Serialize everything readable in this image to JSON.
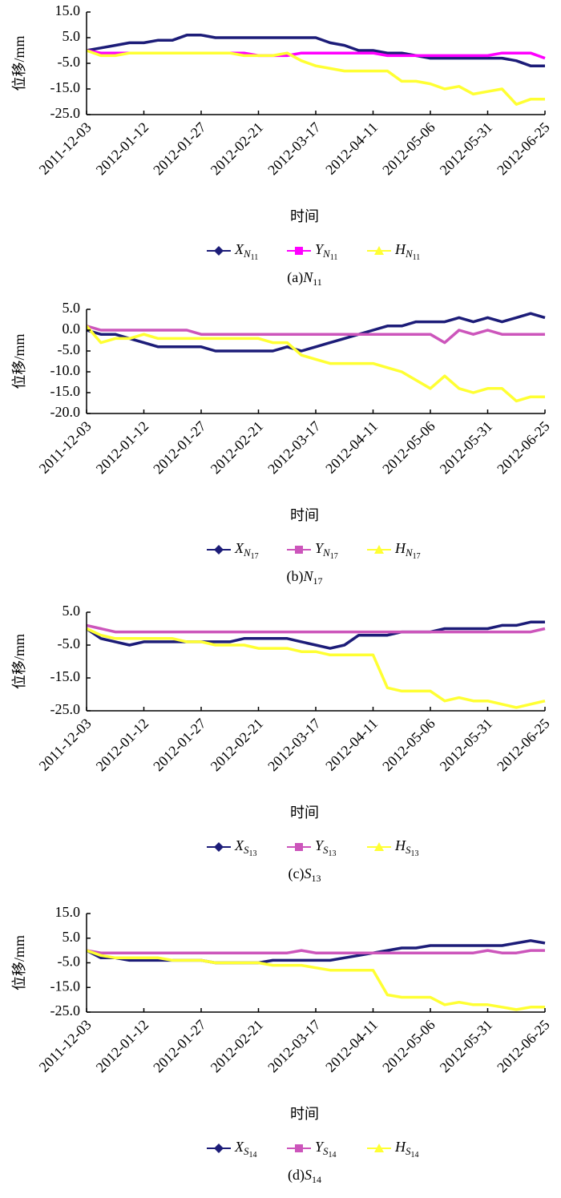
{
  "chart_data": [
    {
      "type": "line",
      "ylabel": "位移/mm",
      "xlabel": "时间",
      "caption": "(a)",
      "caption_var": "N",
      "caption_sub": "11",
      "categories": [
        "2011-12-03",
        null,
        null,
        null,
        "2012-01-12",
        null,
        null,
        null,
        "2012-01-27",
        null,
        null,
        null,
        "2012-02-21",
        null,
        null,
        null,
        "2012-03-17",
        null,
        null,
        null,
        "2012-04-11",
        null,
        null,
        null,
        "2012-05-06",
        null,
        null,
        null,
        "2012-05-31",
        null,
        null,
        null,
        "2012-06-25"
      ],
      "ylim": [
        -25,
        15
      ],
      "yticks": [
        {
          "value": -25,
          "label": "-25.0"
        },
        {
          "value": -15,
          "label": "-15.0"
        },
        {
          "value": -5,
          "label": "-5.0"
        },
        {
          "value": 5,
          "label": "5.0"
        },
        {
          "value": 15,
          "label": "15.0"
        }
      ],
      "series": [
        {
          "name": "X",
          "name_sub": "N",
          "name_subsub": "11",
          "color": "#1c1c78",
          "marker": "diamond",
          "values": [
            0,
            1,
            2,
            3,
            3,
            4,
            4,
            6,
            6,
            5,
            5,
            5,
            5,
            5,
            5,
            5,
            5,
            3,
            2,
            0,
            0,
            -1,
            -1,
            -2,
            -3,
            -3,
            -3,
            -3,
            -3,
            -3,
            -4,
            -6,
            -6
          ]
        },
        {
          "name": "Y",
          "name_sub": "N",
          "name_subsub": "11",
          "color": "#ff00ff",
          "marker": "square",
          "values": [
            0,
            -1,
            -1,
            -1,
            -1,
            -1,
            -1,
            -1,
            -1,
            -1,
            -1,
            -1,
            -2,
            -2,
            -2,
            -1,
            -1,
            -1,
            -1,
            -1,
            -1,
            -2,
            -2,
            -2,
            -2,
            -2,
            -2,
            -2,
            -2,
            -1,
            -1,
            -1,
            -3
          ]
        },
        {
          "name": "H",
          "name_sub": "N",
          "name_subsub": "11",
          "color": "#ffff33",
          "marker": "triangle",
          "values": [
            0,
            -2,
            -2,
            -1,
            -1,
            -1,
            -1,
            -1,
            -1,
            -1,
            -1,
            -2,
            -2,
            -2,
            -1,
            -4,
            -6,
            -7,
            -8,
            -8,
            -8,
            -8,
            -12,
            -12,
            -13,
            -15,
            -14,
            -17,
            -16,
            -15,
            -21,
            -19,
            -19
          ]
        }
      ]
    },
    {
      "type": "line",
      "ylabel": "位移/mm",
      "xlabel": "时间",
      "caption": "(b)",
      "caption_var": "N",
      "caption_sub": "17",
      "categories": [
        "2011-12-03",
        null,
        null,
        null,
        "2012-01-12",
        null,
        null,
        null,
        "2012-01-27",
        null,
        null,
        null,
        "2012-02-21",
        null,
        null,
        null,
        "2012-03-17",
        null,
        null,
        null,
        "2012-04-11",
        null,
        null,
        null,
        "2012-05-06",
        null,
        null,
        null,
        "2012-05-31",
        null,
        null,
        null,
        "2012-06-25"
      ],
      "ylim": [
        -20,
        5
      ],
      "yticks": [
        {
          "value": -20,
          "label": "-20.0"
        },
        {
          "value": -15,
          "label": "-15.0"
        },
        {
          "value": -10,
          "label": "-10.0"
        },
        {
          "value": -5,
          "label": "-5.0"
        },
        {
          "value": 0,
          "label": "0.0"
        },
        {
          "value": 5,
          "label": "5.0"
        }
      ],
      "series": [
        {
          "name": "X",
          "name_sub": "N",
          "name_subsub": "17",
          "color": "#1c1c78",
          "marker": "diamond",
          "values": [
            0,
            -1,
            -1,
            -2,
            -3,
            -4,
            -4,
            -4,
            -4,
            -5,
            -5,
            -5,
            -5,
            -5,
            -4,
            -5,
            -4,
            -3,
            -2,
            -1,
            0,
            1,
            1,
            2,
            2,
            2,
            3,
            2,
            3,
            2,
            3,
            4,
            3
          ]
        },
        {
          "name": "Y",
          "name_sub": "N",
          "name_subsub": "17",
          "color": "#cc55bb",
          "marker": "square",
          "values": [
            1,
            0,
            0,
            0,
            0,
            0,
            0,
            0,
            -1,
            -1,
            -1,
            -1,
            -1,
            -1,
            -1,
            -1,
            -1,
            -1,
            -1,
            -1,
            -1,
            -1,
            -1,
            -1,
            -1,
            -3,
            0,
            -1,
            0,
            -1,
            -1,
            -1,
            -1
          ]
        },
        {
          "name": "H",
          "name_sub": "N",
          "name_subsub": "17",
          "color": "#ffff33",
          "marker": "triangle",
          "values": [
            1,
            -3,
            -2,
            -2,
            -1,
            -2,
            -2,
            -2,
            -2,
            -2,
            -2,
            -2,
            -2,
            -3,
            -3,
            -6,
            -7,
            -8,
            -8,
            -8,
            -8,
            -9,
            -10,
            -12,
            -14,
            -11,
            -14,
            -15,
            -14,
            -14,
            -17,
            -16,
            -16
          ]
        }
      ]
    },
    {
      "type": "line",
      "ylabel": "位移/mm",
      "xlabel": "时间",
      "caption": "(c)",
      "caption_var": "S",
      "caption_sub": "13",
      "categories": [
        "2011-12-03",
        null,
        null,
        null,
        "2012-01-12",
        null,
        null,
        null,
        "2012-01-27",
        null,
        null,
        null,
        "2012-02-21",
        null,
        null,
        null,
        "2012-03-17",
        null,
        null,
        null,
        "2012-04-11",
        null,
        null,
        null,
        "2012-05-06",
        null,
        null,
        null,
        "2012-05-31",
        null,
        null,
        null,
        "2012-06-25"
      ],
      "ylim": [
        -25,
        5
      ],
      "yticks": [
        {
          "value": -25,
          "label": "-25.0"
        },
        {
          "value": -15,
          "label": "-15.0"
        },
        {
          "value": -5,
          "label": "-5.0"
        },
        {
          "value": 5,
          "label": "5.0"
        }
      ],
      "series": [
        {
          "name": "X",
          "name_sub": "S",
          "name_subsub": "13",
          "color": "#1c1c78",
          "marker": "diamond",
          "values": [
            0,
            -3,
            -4,
            -5,
            -4,
            -4,
            -4,
            -4,
            -4,
            -4,
            -4,
            -3,
            -3,
            -3,
            -3,
            -4,
            -5,
            -6,
            -5,
            -2,
            -2,
            -2,
            -1,
            -1,
            -1,
            0,
            0,
            0,
            0,
            1,
            1,
            2,
            2
          ]
        },
        {
          "name": "Y",
          "name_sub": "S",
          "name_subsub": "13",
          "color": "#cc55bb",
          "marker": "square",
          "values": [
            1,
            0,
            -1,
            -1,
            -1,
            -1,
            -1,
            -1,
            -1,
            -1,
            -1,
            -1,
            -1,
            -1,
            -1,
            -1,
            -1,
            -1,
            -1,
            -1,
            -1,
            -1,
            -1,
            -1,
            -1,
            -1,
            -1,
            -1,
            -1,
            -1,
            -1,
            -1,
            0
          ]
        },
        {
          "name": "H",
          "name_sub": "S",
          "name_subsub": "13",
          "color": "#ffff33",
          "marker": "triangle",
          "values": [
            0,
            -2,
            -3,
            -3,
            -3,
            -3,
            -3,
            -4,
            -4,
            -5,
            -5,
            -5,
            -6,
            -6,
            -6,
            -7,
            -7,
            -8,
            -8,
            -8,
            -8,
            -18,
            -19,
            -19,
            -19,
            -22,
            -21,
            -22,
            -22,
            -23,
            -24,
            -23,
            -22
          ]
        }
      ]
    },
    {
      "type": "line",
      "ylabel": "位移/mm",
      "xlabel": "时间",
      "caption": "(d)",
      "caption_var": "S",
      "caption_sub": "14",
      "categories": [
        "2011-12-03",
        null,
        null,
        null,
        "2012-01-12",
        null,
        null,
        null,
        "2012-01-27",
        null,
        null,
        null,
        "2012-02-21",
        null,
        null,
        null,
        "2012-03-17",
        null,
        null,
        null,
        "2012-04-11",
        null,
        null,
        null,
        "2012-05-06",
        null,
        null,
        null,
        "2012-05-31",
        null,
        null,
        null,
        "2012-06-25"
      ],
      "ylim": [
        -25,
        15
      ],
      "yticks": [
        {
          "value": -25,
          "label": "-25.0"
        },
        {
          "value": -15,
          "label": "-15.0"
        },
        {
          "value": -5,
          "label": "-5.0"
        },
        {
          "value": 5,
          "label": "5.0"
        },
        {
          "value": 15,
          "label": "15.0"
        }
      ],
      "series": [
        {
          "name": "X",
          "name_sub": "S",
          "name_subsub": "14",
          "color": "#1c1c78",
          "marker": "diamond",
          "values": [
            0,
            -3,
            -3,
            -4,
            -4,
            -4,
            -4,
            -4,
            -4,
            -5,
            -5,
            -5,
            -5,
            -4,
            -4,
            -4,
            -4,
            -4,
            -3,
            -2,
            -1,
            0,
            1,
            1,
            2,
            2,
            2,
            2,
            2,
            2,
            3,
            4,
            3
          ]
        },
        {
          "name": "Y",
          "name_sub": "S",
          "name_subsub": "14",
          "color": "#cc55bb",
          "marker": "square",
          "values": [
            0,
            -1,
            -1,
            -1,
            -1,
            -1,
            -1,
            -1,
            -1,
            -1,
            -1,
            -1,
            -1,
            -1,
            -1,
            0,
            -1,
            -1,
            -1,
            -1,
            -1,
            -1,
            -1,
            -1,
            -1,
            -1,
            -1,
            -1,
            0,
            -1,
            -1,
            0,
            0
          ]
        },
        {
          "name": "H",
          "name_sub": "S",
          "name_subsub": "14",
          "color": "#ffff33",
          "marker": "triangle",
          "values": [
            0,
            -2,
            -3,
            -3,
            -3,
            -3,
            -4,
            -4,
            -4,
            -5,
            -5,
            -5,
            -5,
            -6,
            -6,
            -6,
            -7,
            -8,
            -8,
            -8,
            -8,
            -18,
            -19,
            -19,
            -19,
            -22,
            -21,
            -22,
            -22,
            -23,
            -24,
            -23,
            -23
          ]
        }
      ]
    }
  ]
}
